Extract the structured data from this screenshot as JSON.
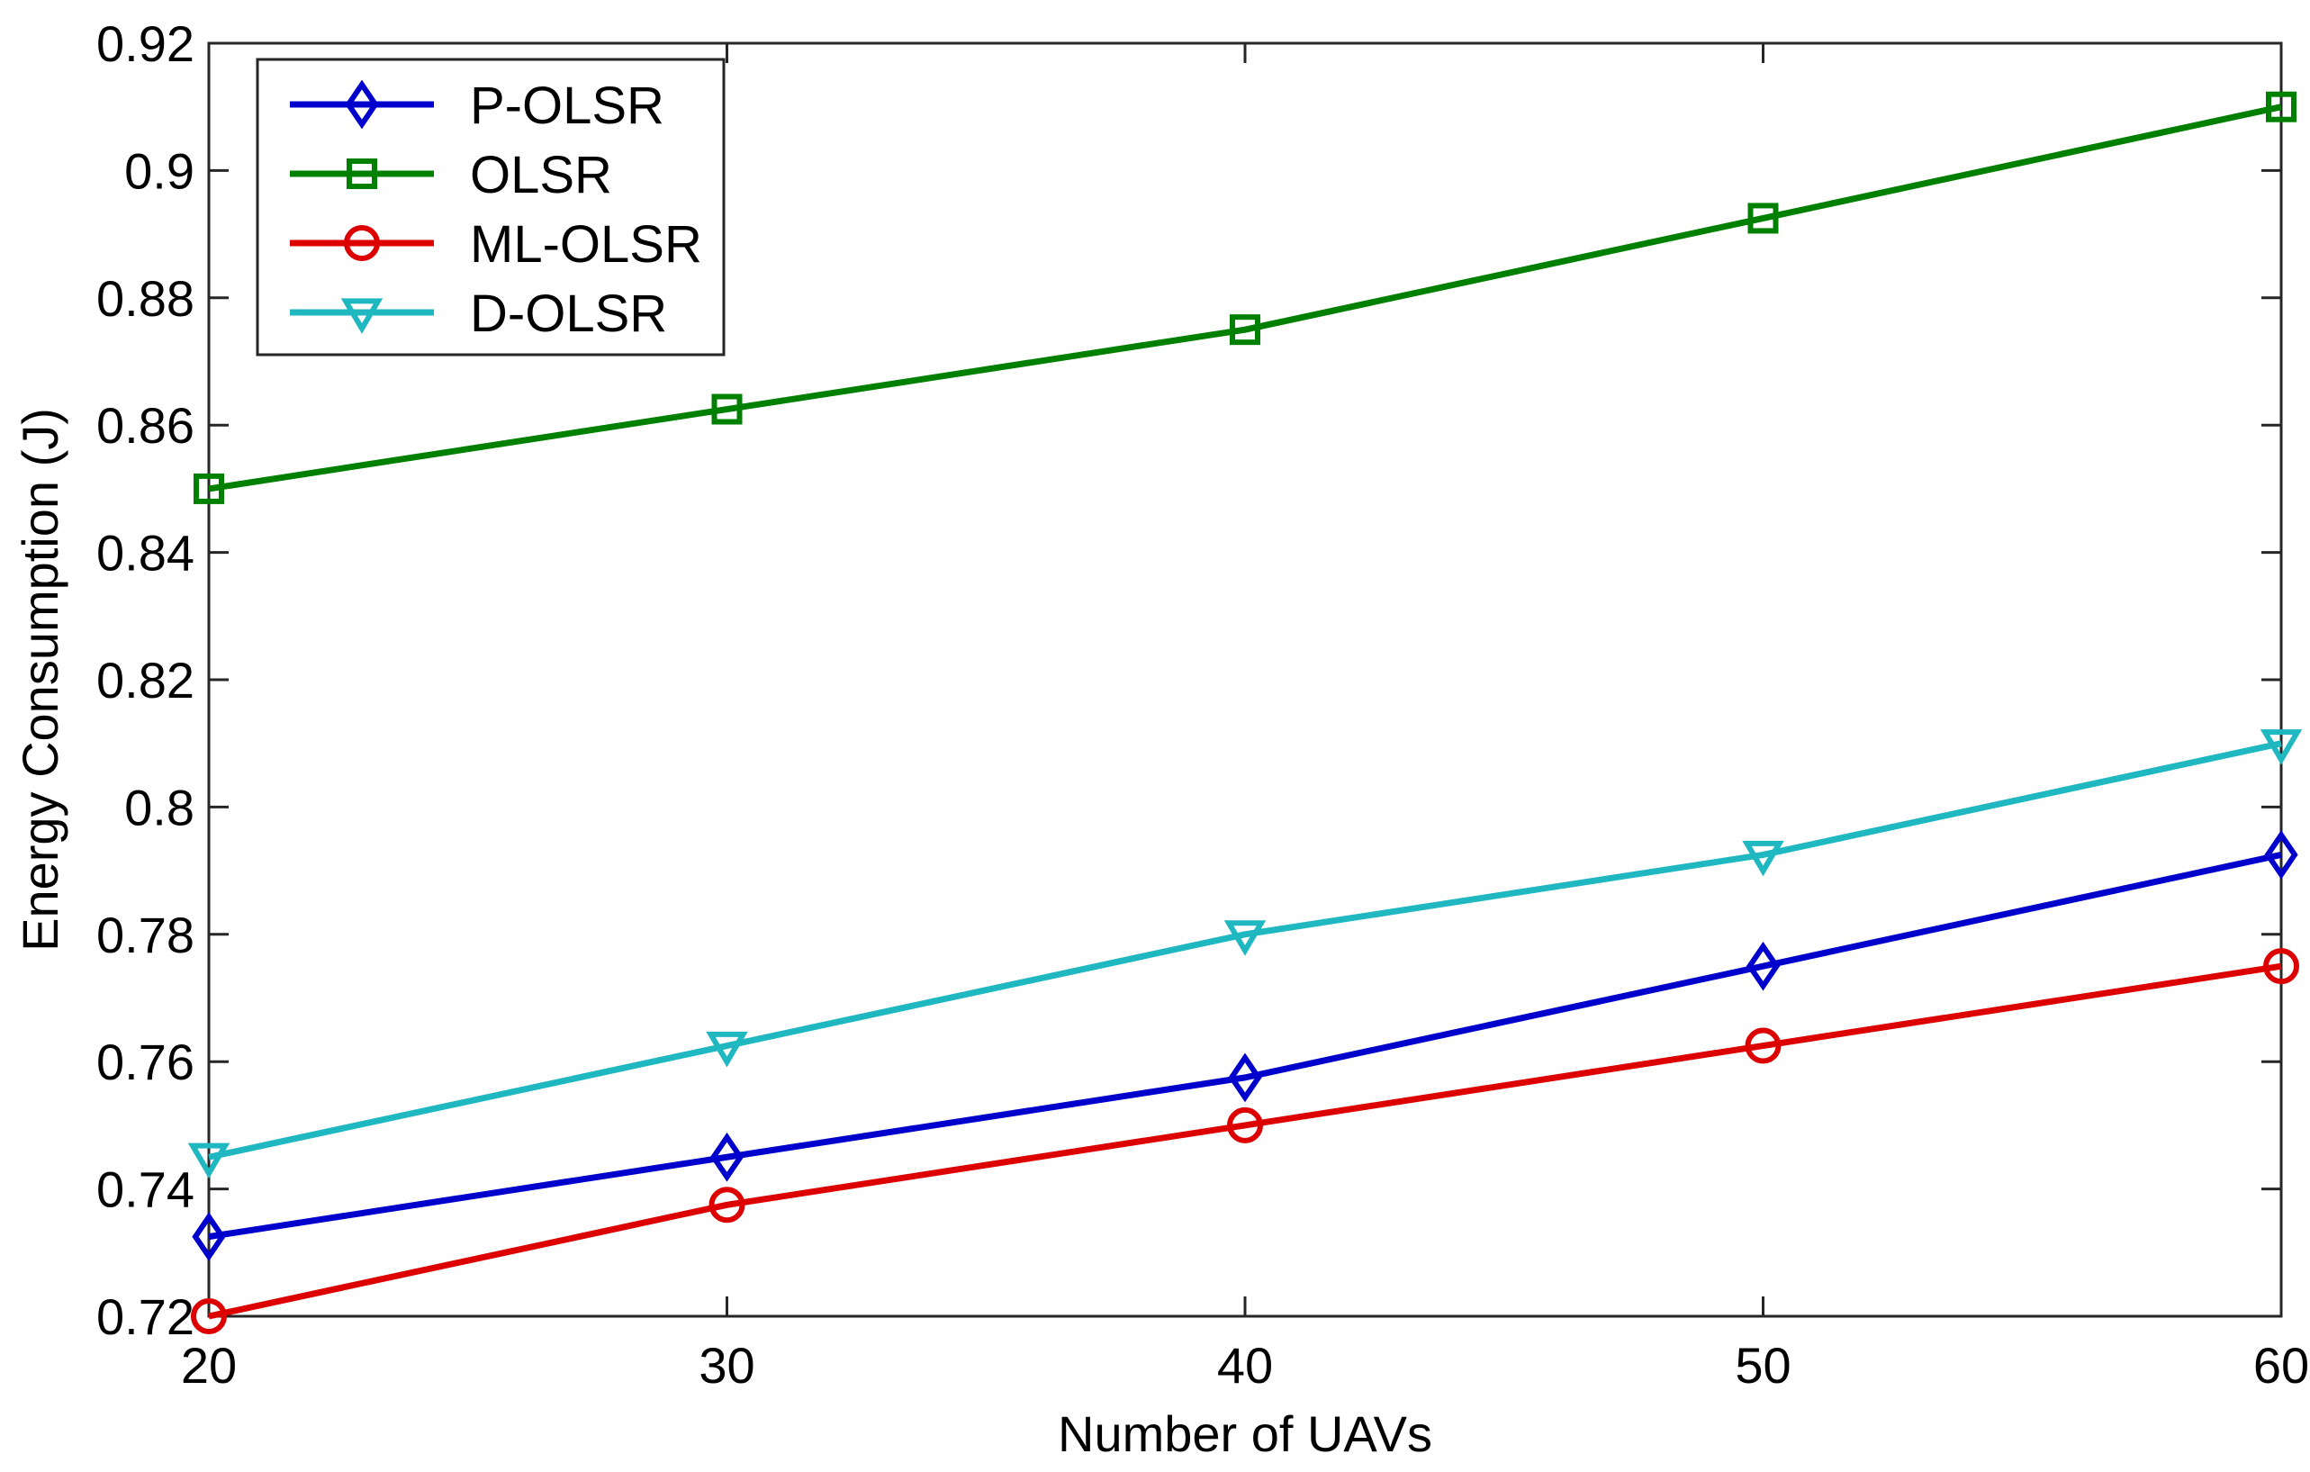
{
  "chart_data": {
    "type": "line",
    "title": "",
    "xlabel": "Number of UAVs",
    "ylabel": "Energy Consumption (J)",
    "x": [
      20,
      30,
      40,
      50,
      60
    ],
    "xlim": [
      20,
      60
    ],
    "ylim": [
      0.72,
      0.92
    ],
    "xticks": [
      20,
      30,
      40,
      50,
      60
    ],
    "xtick_labels": [
      "20",
      "30",
      "40",
      "50",
      "60"
    ],
    "yticks": [
      0.72,
      0.74,
      0.76,
      0.78,
      0.8,
      0.82,
      0.84,
      0.86,
      0.88,
      0.9,
      0.92
    ],
    "ytick_labels": [
      "0.72",
      "0.74",
      "0.76",
      "0.78",
      "0.8",
      "0.82",
      "0.84",
      "0.86",
      "0.88",
      "0.9",
      "0.92"
    ],
    "grid": false,
    "legend_position": "top-left",
    "series": [
      {
        "name": "P-OLSR",
        "color": "#0000CC",
        "marker": "diamond",
        "values": [
          0.7325,
          0.745,
          0.7575,
          0.775,
          0.7925
        ]
      },
      {
        "name": "OLSR",
        "color": "#008000",
        "marker": "square",
        "values": [
          0.85,
          0.8625,
          0.875,
          0.8925,
          0.91
        ]
      },
      {
        "name": "ML-OLSR",
        "color": "#DD0000",
        "marker": "circle",
        "values": [
          0.72,
          0.7375,
          0.75,
          0.7625,
          0.775
        ]
      },
      {
        "name": "D-OLSR",
        "color": "#20B8C0",
        "marker": "triangle-down",
        "values": [
          0.745,
          0.7625,
          0.78,
          0.7925,
          0.81
        ]
      }
    ]
  }
}
